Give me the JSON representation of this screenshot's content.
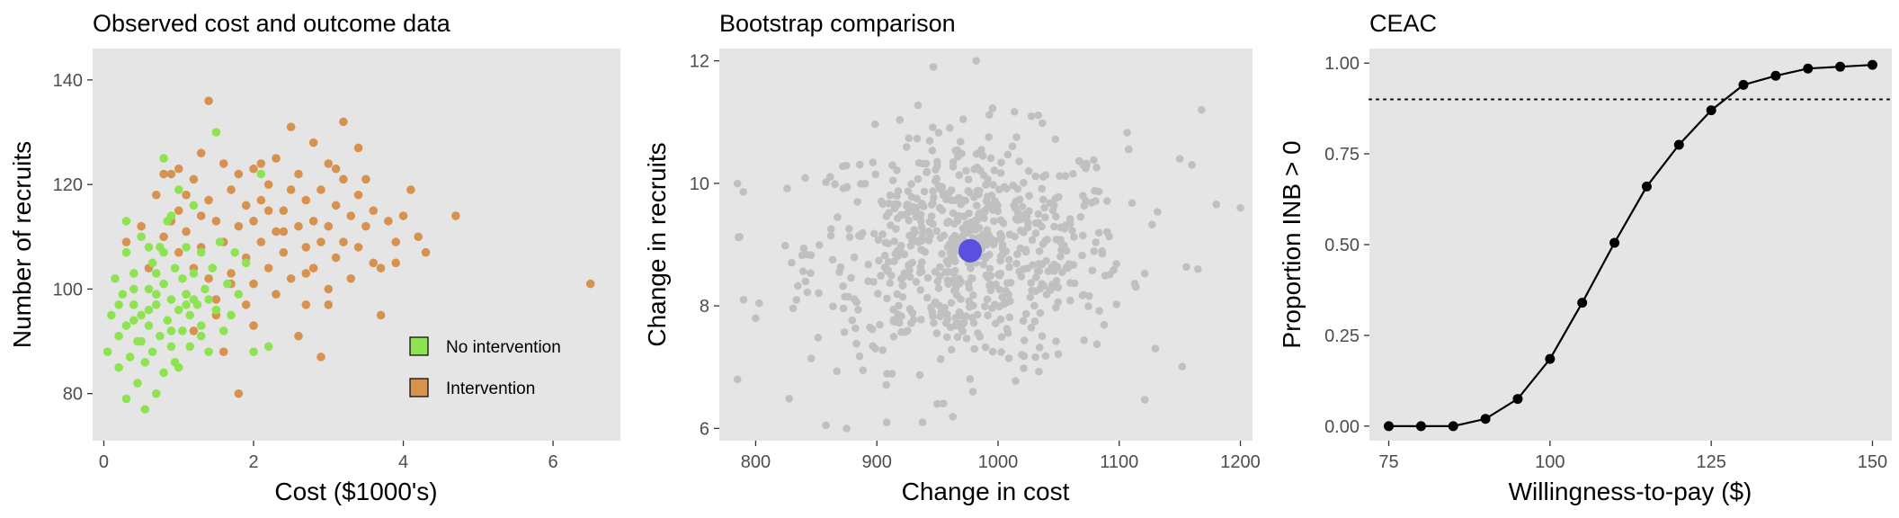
{
  "chart_data": [
    {
      "type": "scatter",
      "title": "Observed cost and outcome data",
      "xlabel": "Cost ($1000's)",
      "ylabel": "Number of recruits",
      "xlim": [
        -0.15,
        6.9
      ],
      "ylim": [
        71,
        146
      ],
      "xticks": [
        0,
        2,
        4,
        6
      ],
      "yticks": [
        80,
        100,
        120,
        140
      ],
      "panel_bg": "#e5e5e5",
      "grid": false,
      "legend_position": "bottom-right",
      "series": [
        {
          "name": "Intervention",
          "color": "#d8924f",
          "points": [
            [
              0.3,
              109
            ],
            [
              0.5,
              112
            ],
            [
              0.6,
              104
            ],
            [
              0.7,
              118
            ],
            [
              0.8,
              110
            ],
            [
              0.9,
              113
            ],
            [
              0.9,
              122
            ],
            [
              1.0,
              107
            ],
            [
              1.0,
              115
            ],
            [
              1.1,
              99
            ],
            [
              1.1,
              111
            ],
            [
              1.2,
              121
            ],
            [
              1.2,
              104
            ],
            [
              1.3,
              126
            ],
            [
              1.3,
              108
            ],
            [
              1.4,
              136
            ],
            [
              1.4,
              117
            ],
            [
              1.4,
              102
            ],
            [
              1.5,
              113
            ],
            [
              1.5,
              95
            ],
            [
              1.6,
              124
            ],
            [
              1.6,
              109
            ],
            [
              1.6,
              88
            ],
            [
              1.7,
              119
            ],
            [
              1.7,
              103
            ],
            [
              1.8,
              112
            ],
            [
              1.8,
              122
            ],
            [
              1.8,
              80
            ],
            [
              1.9,
              106
            ],
            [
              1.9,
              116
            ],
            [
              1.9,
              97
            ],
            [
              2.0,
              113
            ],
            [
              2.0,
              123
            ],
            [
              2.0,
              101
            ],
            [
              2.1,
              109
            ],
            [
              2.1,
              117
            ],
            [
              2.2,
              120
            ],
            [
              2.2,
              104
            ],
            [
              2.3,
              111
            ],
            [
              2.3,
              125
            ],
            [
              2.3,
              99
            ],
            [
              2.4,
              115
            ],
            [
              2.4,
              107
            ],
            [
              2.5,
              131
            ],
            [
              2.5,
              119
            ],
            [
              2.5,
              102
            ],
            [
              2.6,
              112
            ],
            [
              2.6,
              122
            ],
            [
              2.7,
              108
            ],
            [
              2.7,
              117
            ],
            [
              2.7,
              97
            ],
            [
              2.8,
              128
            ],
            [
              2.8,
              113
            ],
            [
              2.8,
              104
            ],
            [
              2.9,
              119
            ],
            [
              2.9,
              109
            ],
            [
              3.0,
              124
            ],
            [
              3.0,
              112
            ],
            [
              3.0,
              100
            ],
            [
              3.1,
              116
            ],
            [
              3.1,
              106
            ],
            [
              3.2,
              132
            ],
            [
              3.2,
              121
            ],
            [
              3.2,
              109
            ],
            [
              3.3,
              114
            ],
            [
              3.3,
              102
            ],
            [
              3.4,
              127
            ],
            [
              3.4,
              118
            ],
            [
              3.4,
              108
            ],
            [
              3.5,
              121
            ],
            [
              3.5,
              112
            ],
            [
              3.6,
              105
            ],
            [
              3.6,
              115
            ],
            [
              3.7,
              95
            ],
            [
              3.8,
              113
            ],
            [
              3.9,
              109
            ],
            [
              4.0,
              114
            ],
            [
              4.1,
              119
            ],
            [
              4.2,
              110
            ],
            [
              4.3,
              107
            ],
            [
              4.7,
              114
            ],
            [
              6.5,
              101
            ],
            [
              2.0,
              93
            ],
            [
              2.6,
              91
            ],
            [
              1.2,
              92
            ],
            [
              1.5,
              98
            ],
            [
              3.0,
              97
            ],
            [
              2.9,
              87
            ],
            [
              1.7,
              101
            ],
            [
              2.2,
              115
            ],
            [
              0.8,
              122
            ],
            [
              1.0,
              123
            ],
            [
              3.7,
              104
            ],
            [
              3.9,
              105
            ],
            [
              2.4,
              111
            ],
            [
              2.7,
              103
            ],
            [
              3.1,
              123
            ],
            [
              2.1,
              124
            ],
            [
              1.3,
              114
            ],
            [
              1.1,
              118
            ]
          ]
        },
        {
          "name": "No intervention",
          "color": "#8ee352",
          "points": [
            [
              0.05,
              88
            ],
            [
              0.1,
              95
            ],
            [
              0.15,
              102
            ],
            [
              0.2,
              91
            ],
            [
              0.2,
              85
            ],
            [
              0.25,
              99
            ],
            [
              0.3,
              93
            ],
            [
              0.3,
              107
            ],
            [
              0.35,
              87
            ],
            [
              0.4,
              97
            ],
            [
              0.4,
              103
            ],
            [
              0.45,
              82
            ],
            [
              0.45,
              90
            ],
            [
              0.5,
              95
            ],
            [
              0.5,
              110
            ],
            [
              0.55,
              77
            ],
            [
              0.55,
              86
            ],
            [
              0.6,
              100
            ],
            [
              0.6,
              93
            ],
            [
              0.65,
              88
            ],
            [
              0.65,
              105
            ],
            [
              0.7,
              80
            ],
            [
              0.7,
              97
            ],
            [
              0.75,
              91
            ],
            [
              0.75,
              108
            ],
            [
              0.8,
              84
            ],
            [
              0.8,
              101
            ],
            [
              0.8,
              125
            ],
            [
              0.85,
              94
            ],
            [
              0.85,
              113
            ],
            [
              0.9,
              89
            ],
            [
              0.9,
              98
            ],
            [
              0.95,
              104
            ],
            [
              0.95,
              86
            ],
            [
              1.0,
              96
            ],
            [
              1.0,
              119
            ],
            [
              1.05,
              92
            ],
            [
              1.05,
              102
            ],
            [
              1.1,
              99
            ],
            [
              1.1,
              108
            ],
            [
              1.15,
              95
            ],
            [
              1.15,
              89
            ],
            [
              1.2,
              103
            ],
            [
              1.2,
              116
            ],
            [
              1.25,
              97
            ],
            [
              1.3,
              93
            ],
            [
              1.3,
              107
            ],
            [
              1.35,
              100
            ],
            [
              1.4,
              88
            ],
            [
              1.45,
              104
            ],
            [
              1.5,
              96
            ],
            [
              1.5,
              130
            ],
            [
              1.55,
              109
            ],
            [
              1.6,
              92
            ],
            [
              1.65,
              101
            ],
            [
              1.7,
              95
            ],
            [
              1.75,
              107
            ],
            [
              1.8,
              99
            ],
            [
              1.9,
              105
            ],
            [
              2.0,
              88
            ],
            [
              2.1,
              122
            ],
            [
              2.2,
              89
            ],
            [
              0.3,
              113
            ],
            [
              0.4,
              100
            ],
            [
              0.6,
              96
            ],
            [
              0.7,
              103
            ],
            [
              0.5,
              90
            ],
            [
              0.9,
              92
            ],
            [
              1.0,
              85
            ],
            [
              1.2,
              98
            ],
            [
              0.2,
              97
            ],
            [
              0.3,
              79
            ],
            [
              0.7,
              99
            ],
            [
              0.8,
              107
            ],
            [
              1.1,
              97
            ],
            [
              1.3,
              91
            ],
            [
              0.6,
              108
            ],
            [
              0.4,
              94
            ],
            [
              0.9,
              114
            ],
            [
              1.4,
              98
            ]
          ]
        }
      ]
    },
    {
      "type": "scatter",
      "title": "Bootstrap comparison",
      "xlabel": "Change in cost",
      "ylabel": "Change in recruits",
      "xlim": [
        770,
        1210
      ],
      "ylim": [
        5.8,
        12.2
      ],
      "xticks": [
        800,
        900,
        1000,
        1100,
        1200
      ],
      "yticks": [
        6,
        8,
        10,
        12
      ],
      "panel_bg": "#e5e5e5",
      "grid": false,
      "bootstrap": {
        "n": 700,
        "x_mean": 975,
        "x_sd": 65,
        "y_mean": 8.9,
        "y_sd": 0.95,
        "color": "#c0c0c0"
      },
      "outliers": [
        [
          982,
          12.0
        ],
        [
          1168,
          11.2
        ],
        [
          1200,
          9.6
        ],
        [
          785,
          6.8
        ],
        [
          875,
          6.0
        ],
        [
          858,
          6.05
        ],
        [
          1160,
          10.3
        ],
        [
          1150,
          10.4
        ],
        [
          1165,
          8.6
        ],
        [
          790,
          8.1
        ],
        [
          800,
          7.8
        ]
      ],
      "mean_point": {
        "x": 977,
        "y": 8.9,
        "color": "#5b4fe0"
      }
    },
    {
      "type": "line",
      "title": "CEAC",
      "xlabel": "Willingness-to-pay ($)",
      "ylabel": "Proportion INB > 0",
      "xlim": [
        72,
        153
      ],
      "ylim": [
        -0.04,
        1.04
      ],
      "xticks": [
        75,
        100,
        125,
        150
      ],
      "yticks": [
        0.0,
        0.25,
        0.5,
        0.75,
        1.0
      ],
      "ytick_labels": [
        "0.00",
        "0.25",
        "0.50",
        "0.75",
        "1.00"
      ],
      "panel_bg": "#e5e5e5",
      "grid": false,
      "reference_line": {
        "y": 0.9,
        "style": "dotted"
      },
      "x": [
        75,
        80,
        85,
        90,
        95,
        100,
        105,
        110,
        115,
        120,
        125,
        130,
        135,
        140,
        145,
        150
      ],
      "y": [
        0.0,
        0.0,
        0.0,
        0.02,
        0.075,
        0.185,
        0.34,
        0.505,
        0.66,
        0.775,
        0.87,
        0.94,
        0.965,
        0.985,
        0.99,
        0.995
      ]
    }
  ]
}
